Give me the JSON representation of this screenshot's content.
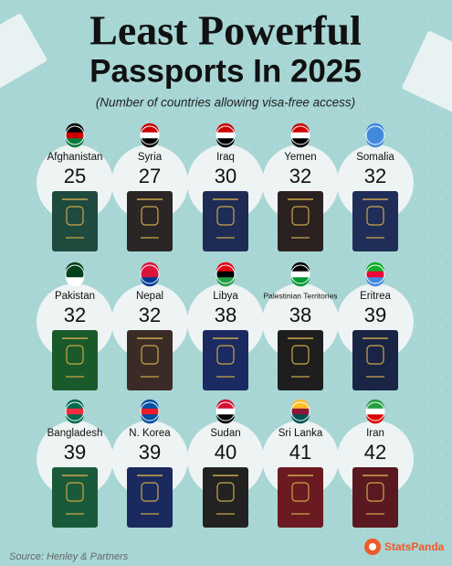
{
  "header": {
    "title_line1": "Least Powerful",
    "title_line2": "Passports In 2025",
    "subtitle": "(Number of countries allowing visa-free access)"
  },
  "cards": [
    {
      "country": "Afghanistan",
      "value": "25"
    },
    {
      "country": "Syria",
      "value": "27"
    },
    {
      "country": "Iraq",
      "value": "30"
    },
    {
      "country": "Yemen",
      "value": "32"
    },
    {
      "country": "Somalia",
      "value": "32"
    },
    {
      "country": "Pakistan",
      "value": "32"
    },
    {
      "country": "Nepal",
      "value": "32"
    },
    {
      "country": "Libya",
      "value": "38"
    },
    {
      "country": "Palestinian Territories",
      "value": "38"
    },
    {
      "country": "Eritrea",
      "value": "39"
    },
    {
      "country": "Bangladesh",
      "value": "39"
    },
    {
      "country": "N. Korea",
      "value": "39"
    },
    {
      "country": "Sudan",
      "value": "40"
    },
    {
      "country": "Sri Lanka",
      "value": "41"
    },
    {
      "country": "Iran",
      "value": "42"
    }
  ],
  "footer": {
    "source": "Source: Henley & Partners",
    "brand": "StatsPanda"
  }
}
